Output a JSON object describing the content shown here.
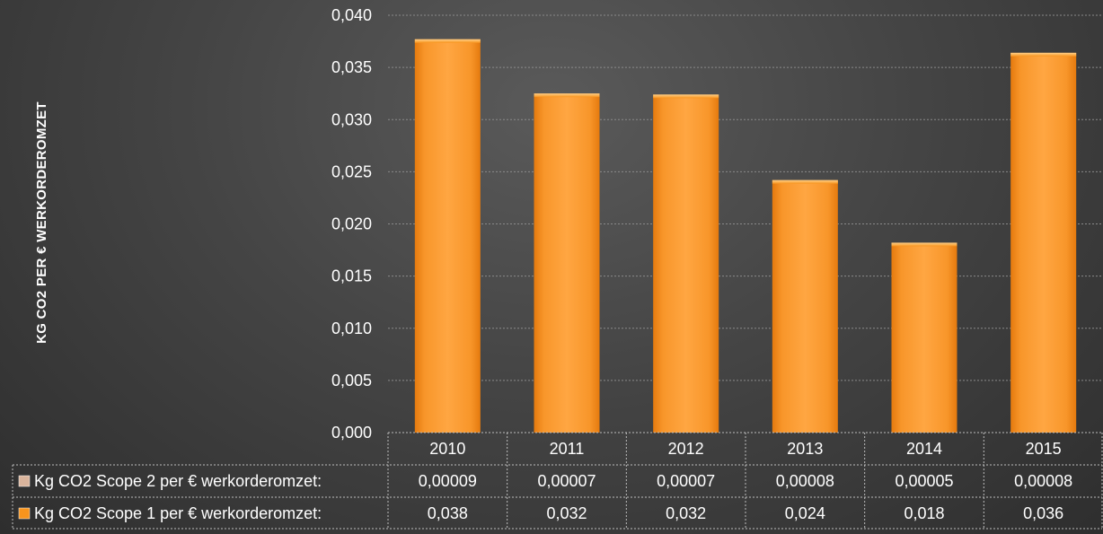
{
  "chart_data": {
    "type": "bar",
    "ylabel": "KG CO2 PER € WERKORDEROMZET",
    "categories": [
      "2010",
      "2011",
      "2012",
      "2013",
      "2014",
      "2015"
    ],
    "ylim": [
      0,
      0.04
    ],
    "y_ticks": [
      "0,000",
      "0,005",
      "0,010",
      "0,015",
      "0,020",
      "0,025",
      "0,030",
      "0,035",
      "0,040"
    ],
    "grid": true,
    "bar_color": "#f7941d",
    "scope2_color": "#d9b49c",
    "series": [
      {
        "name": "Kg CO2 Scope 2 per € werkorderomzet:",
        "values": [
          9e-05,
          7e-05,
          7e-05,
          8e-05,
          5e-05,
          8e-05
        ],
        "labels": [
          "0,00009",
          "0,00007",
          "0,00007",
          "0,00008",
          "0,00005",
          "0,00008"
        ]
      },
      {
        "name": "Kg CO2 Scope 1 per € werkorderomzet:",
        "values": [
          0.0377,
          0.0325,
          0.0324,
          0.0242,
          0.0182,
          0.0364
        ],
        "labels": [
          "0,038",
          "0,032",
          "0,032",
          "0,024",
          "0,018",
          "0,036"
        ]
      }
    ]
  }
}
